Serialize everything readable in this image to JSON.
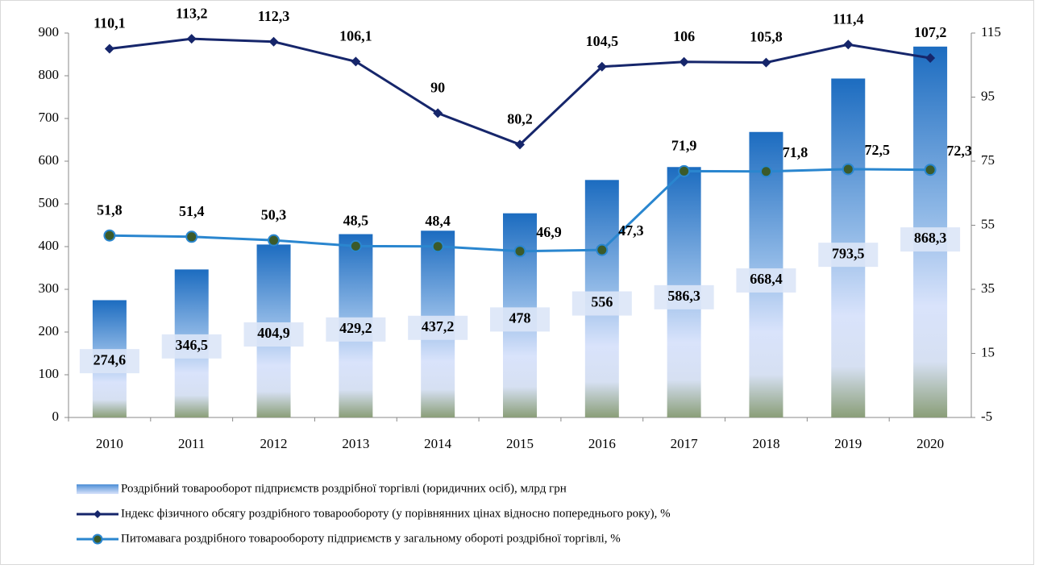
{
  "chart_data": {
    "type": "bar-line",
    "categories": [
      "2010",
      "2011",
      "2012",
      "2013",
      "2014",
      "2015",
      "2016",
      "2017",
      "2018",
      "2019",
      "2020"
    ],
    "series": [
      {
        "name": "Роздрібний товарооборот підприємств роздрібної торгівлі (юридичних осіб), млрд грн",
        "type": "bar",
        "color": "#1f6fbf",
        "axis": "y",
        "values": [
          274.6,
          346.5,
          404.9,
          429.2,
          437.2,
          478,
          556,
          586.3,
          668.4,
          793.5,
          868.3
        ],
        "value_labels": [
          "274,6",
          "346,5",
          "404,9",
          "429,2",
          "437,2",
          "478",
          "556",
          "586,3",
          "668,4",
          "793,5",
          "868,3"
        ]
      },
      {
        "name": "Індекс фізичного обсягу роздрібного товарообороту (у порівнянних цінах відносно попереднього року), %",
        "type": "line",
        "color": "#16266b",
        "marker": "diamond",
        "axis": "y2",
        "values": [
          110.1,
          113.2,
          112.3,
          106.1,
          90,
          80.2,
          104.5,
          106,
          105.8,
          111.4,
          107.2
        ],
        "value_labels": [
          "110,1",
          "113,2",
          "112,3",
          "106,1",
          "90",
          "80,2",
          "104,5",
          "106",
          "105,8",
          "111,4",
          "107,2"
        ]
      },
      {
        "name": "Питомавага роздрібного товарообороту підприємств у загальному обороті роздрібної торгівлі, %",
        "type": "line",
        "color": "#2a86cf",
        "marker": "circle",
        "axis": "y2",
        "values": [
          51.8,
          51.4,
          50.3,
          48.5,
          48.4,
          46.9,
          47.3,
          71.9,
          71.8,
          72.5,
          72.3
        ],
        "value_labels": [
          "51,8",
          "51,4",
          "50,3",
          "48,5",
          "48,4",
          "46,9",
          "47,3",
          "71,9",
          "71,8",
          "72,5",
          "72,3"
        ]
      }
    ],
    "ylim": [
      0,
      900
    ],
    "yticks": [
      0,
      100,
      200,
      300,
      400,
      500,
      600,
      700,
      800,
      900
    ],
    "y2lim": [
      -5,
      115
    ],
    "y2ticks": [
      -5,
      15,
      35,
      55,
      75,
      95,
      115
    ],
    "grid": false,
    "legend": "bottom"
  }
}
